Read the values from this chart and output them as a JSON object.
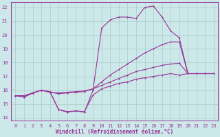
{
  "xlabel": "Windchill (Refroidissement éolien,°C)",
  "xlim": [
    -0.5,
    23.5
  ],
  "ylim": [
    13.8,
    22.4
  ],
  "yticks": [
    14,
    15,
    16,
    17,
    18,
    19,
    20,
    21,
    22
  ],
  "xticks": [
    0,
    1,
    2,
    3,
    4,
    5,
    6,
    7,
    8,
    9,
    10,
    11,
    12,
    13,
    14,
    15,
    16,
    17,
    18,
    19,
    20,
    21,
    22,
    23
  ],
  "bg_color": "#cce8e8",
  "grid_color": "#aacccc",
  "line_color": "#993399",
  "curve1_x": [
    0,
    1,
    2,
    3,
    4,
    5,
    6,
    7,
    8,
    9,
    10,
    11,
    12,
    13,
    14,
    15,
    16,
    17,
    18,
    19,
    20,
    21,
    22,
    23
  ],
  "curve1_y": [
    15.6,
    15.5,
    15.8,
    16.0,
    15.9,
    14.6,
    14.4,
    14.5,
    14.4,
    16.0,
    20.5,
    21.1,
    21.3,
    21.3,
    21.2,
    22.0,
    22.1,
    21.3,
    20.3,
    19.8,
    17.2,
    17.2,
    17.2,
    17.2
  ],
  "curve2_x": [
    0,
    1,
    2,
    3,
    4,
    5,
    6,
    7,
    8,
    9,
    10,
    11,
    12,
    13,
    14,
    15,
    16,
    17,
    18,
    19,
    20,
    21,
    22,
    23
  ],
  "curve2_y": [
    15.6,
    15.6,
    15.8,
    16.0,
    15.85,
    15.75,
    15.8,
    15.85,
    15.9,
    16.1,
    16.6,
    17.1,
    17.5,
    17.9,
    18.3,
    18.7,
    19.0,
    19.3,
    19.5,
    19.5,
    17.2,
    17.2,
    17.2,
    17.2
  ],
  "curve3_x": [
    0,
    1,
    2,
    3,
    4,
    5,
    6,
    7,
    8,
    9,
    10,
    11,
    12,
    13,
    14,
    15,
    16,
    17,
    18,
    19,
    20,
    21,
    22,
    23
  ],
  "curve3_y": [
    15.6,
    15.6,
    15.8,
    16.0,
    15.85,
    15.8,
    15.85,
    15.9,
    15.95,
    16.1,
    16.35,
    16.6,
    16.85,
    17.1,
    17.35,
    17.5,
    17.65,
    17.8,
    17.9,
    17.95,
    17.2,
    17.2,
    17.2,
    17.2
  ],
  "curve4_x": [
    0,
    1,
    2,
    3,
    4,
    5,
    6,
    7,
    8,
    9,
    10,
    11,
    12,
    13,
    14,
    15,
    16,
    17,
    18,
    19,
    20,
    21,
    22,
    23
  ],
  "curve4_y": [
    15.6,
    15.5,
    15.8,
    16.0,
    15.9,
    14.6,
    14.45,
    14.5,
    14.45,
    15.65,
    16.1,
    16.3,
    16.5,
    16.6,
    16.8,
    16.9,
    17.0,
    17.1,
    17.2,
    17.1,
    17.2,
    17.2,
    17.2,
    17.2
  ]
}
